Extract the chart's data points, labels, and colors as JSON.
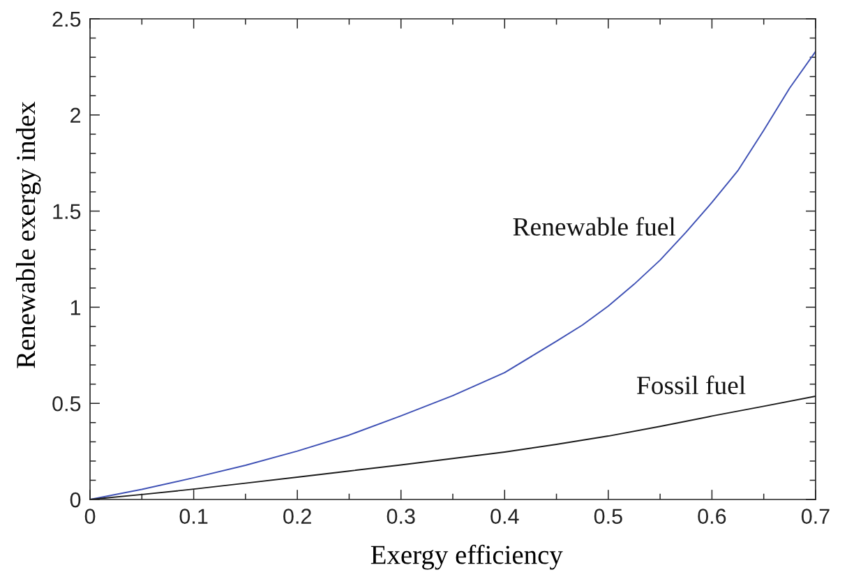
{
  "chart_data": {
    "type": "line",
    "xlabel": "Exergy efficiency",
    "ylabel": "Renewable exergy index",
    "series": [
      {
        "name": "Renewable fuel",
        "color": "#3f51b5",
        "x": [
          0,
          0.05,
          0.1,
          0.15,
          0.2,
          0.25,
          0.3,
          0.35,
          0.4,
          0.45,
          0.475,
          0.5,
          0.525,
          0.55,
          0.575,
          0.6,
          0.625,
          0.65,
          0.675,
          0.7
        ],
        "values": [
          0,
          0.053,
          0.113,
          0.178,
          0.252,
          0.335,
          0.435,
          0.54,
          0.66,
          0.823,
          0.907,
          1.006,
          1.12,
          1.245,
          1.39,
          1.545,
          1.71,
          1.92,
          2.14,
          2.33
        ]
      },
      {
        "name": "Fossil fuel",
        "color": "#1a1a1a",
        "x": [
          0,
          0.05,
          0.1,
          0.15,
          0.2,
          0.25,
          0.3,
          0.35,
          0.4,
          0.45,
          0.5,
          0.55,
          0.6,
          0.65,
          0.7
        ],
        "values": [
          0,
          0.026,
          0.054,
          0.085,
          0.116,
          0.148,
          0.18,
          0.213,
          0.247,
          0.287,
          0.33,
          0.38,
          0.434,
          0.485,
          0.537
        ]
      }
    ],
    "xlim": [
      0,
      0.7
    ],
    "ylim": [
      0,
      2.5
    ],
    "xticks": [
      0,
      {
        "value": 0.05,
        "label": null
      },
      0.1,
      {
        "value": 0.15,
        "label": null
      },
      0.2,
      {
        "value": 0.25,
        "label": null
      },
      0.3,
      {
        "value": 0.35,
        "label": null
      },
      0.4,
      {
        "value": 0.45,
        "label": null
      },
      0.5,
      {
        "value": 0.55,
        "label": null
      },
      0.6,
      {
        "value": 0.65,
        "label": null
      },
      0.7
    ],
    "yticks": [
      0,
      {
        "value": 0.1,
        "label": null
      },
      {
        "value": 0.2,
        "label": null
      },
      {
        "value": 0.3,
        "label": null
      },
      {
        "value": 0.4,
        "label": null
      },
      0.5,
      {
        "value": 0.6,
        "label": null
      },
      {
        "value": 0.7,
        "label": null
      },
      {
        "value": 0.8,
        "label": null
      },
      {
        "value": 0.9,
        "label": null
      },
      1,
      {
        "value": 1.1,
        "label": null
      },
      {
        "value": 1.2,
        "label": null
      },
      {
        "value": 1.3,
        "label": null
      },
      {
        "value": 1.4,
        "label": null
      },
      1.5,
      {
        "value": 1.6,
        "label": null
      },
      {
        "value": 1.7,
        "label": null
      },
      {
        "value": 1.8,
        "label": null
      },
      {
        "value": 1.9,
        "label": null
      },
      2,
      {
        "value": 2.1,
        "label": null
      },
      {
        "value": 2.2,
        "label": null
      },
      {
        "value": 2.3,
        "label": null
      },
      {
        "value": 2.4,
        "label": null
      },
      2.5
    ],
    "marker": "none",
    "line_style": "solid"
  }
}
